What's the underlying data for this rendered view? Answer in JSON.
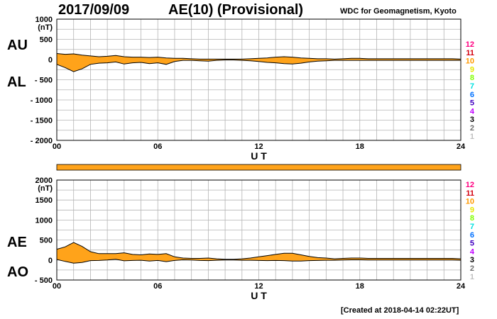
{
  "header": {
    "date": "2017/09/09",
    "title": "AE(10) (Provisional)",
    "source": "WDC for Geomagnetism, Kyoto",
    "created": "[Created at 2018-04-14 02:22UT]"
  },
  "colors": {
    "fill": "#ffa31a",
    "grid": "#b4b4b4",
    "axis": "#000000",
    "bar": "#ffa31a"
  },
  "station_legend": {
    "labels": [
      "12",
      "11",
      "10",
      "9",
      "8",
      "7",
      "6",
      "5",
      "4",
      "3",
      "2",
      "1"
    ],
    "colors": [
      "#ff0080",
      "#d4000f",
      "#ff9900",
      "#e6e600",
      "#80ff00",
      "#00e0e0",
      "#0070ff",
      "#4000c0",
      "#c000ff",
      "#000000",
      "#707070",
      "#c0c0c0"
    ]
  },
  "chart_data": [
    {
      "type": "area",
      "panel": "AU/AL",
      "labels_left": [
        "AU",
        "AL"
      ],
      "unit": "(nT)",
      "xlabel": "U T",
      "x_ticks": [
        "00",
        "06",
        "12",
        "18",
        "24"
      ],
      "y_ticks": [
        "1000",
        "500",
        "0",
        "- 500",
        "- 1000",
        "- 1500",
        "- 2000"
      ],
      "y_tick_values": [
        1000,
        500,
        0,
        -500,
        -1000,
        -1500,
        -2000
      ],
      "xlim": [
        0,
        24
      ],
      "ylim": [
        -2000,
        1000
      ],
      "grid": true,
      "series": [
        {
          "name": "AU",
          "x": [
            0,
            0.5,
            1,
            1.5,
            2,
            2.5,
            3,
            3.5,
            4,
            4.5,
            5,
            5.5,
            6,
            6.5,
            7,
            7.5,
            8,
            8.5,
            9,
            9.5,
            10,
            10.5,
            11,
            11.5,
            12,
            12.5,
            13,
            13.5,
            14,
            14.5,
            15,
            15.5,
            16,
            16.5,
            17,
            17.5,
            18,
            18.5,
            19,
            19.5,
            20,
            20.5,
            21,
            21.5,
            22,
            22.5,
            23,
            23.5,
            24
          ],
          "values": [
            150,
            130,
            140,
            110,
            90,
            70,
            80,
            100,
            70,
            60,
            60,
            50,
            60,
            40,
            30,
            30,
            20,
            10,
            10,
            10,
            10,
            10,
            10,
            20,
            30,
            40,
            60,
            70,
            60,
            40,
            30,
            20,
            20,
            10,
            20,
            30,
            30,
            20,
            20,
            20,
            20,
            20,
            20,
            20,
            20,
            20,
            20,
            20,
            10
          ]
        },
        {
          "name": "AL",
          "x": [
            0,
            0.5,
            1,
            1.5,
            2,
            2.5,
            3,
            3.5,
            4,
            4.5,
            5,
            5.5,
            6,
            6.5,
            7,
            7.5,
            8,
            8.5,
            9,
            9.5,
            10,
            10.5,
            11,
            11.5,
            12,
            12.5,
            13,
            13.5,
            14,
            14.5,
            15,
            15.5,
            16,
            16.5,
            17,
            17.5,
            18,
            18.5,
            19,
            19.5,
            20,
            20.5,
            21,
            21.5,
            22,
            22.5,
            23,
            23.5,
            24
          ],
          "values": [
            -120,
            -200,
            -300,
            -230,
            -120,
            -90,
            -80,
            -60,
            -110,
            -80,
            -70,
            -100,
            -80,
            -120,
            -50,
            -20,
            -20,
            -30,
            -40,
            -20,
            -10,
            -10,
            -20,
            -30,
            -50,
            -70,
            -80,
            -100,
            -110,
            -90,
            -60,
            -40,
            -30,
            -20,
            -20,
            -20,
            -20,
            -20,
            -20,
            -20,
            -20,
            -20,
            -20,
            -20,
            -20,
            -20,
            -20,
            -20,
            -20
          ]
        }
      ]
    },
    {
      "type": "area",
      "panel": "AE/AO",
      "labels_left": [
        "AE",
        "AO"
      ],
      "unit": "(nT)",
      "xlabel": "U T",
      "x_ticks": [
        "00",
        "06",
        "12",
        "18",
        "24"
      ],
      "y_ticks": [
        "2000",
        "1500",
        "1000",
        "500",
        "0",
        "- 500"
      ],
      "y_tick_values": [
        2000,
        1500,
        1000,
        500,
        0,
        -500
      ],
      "xlim": [
        0,
        24
      ],
      "ylim": [
        -500,
        2000
      ],
      "grid": true,
      "series": [
        {
          "name": "AE",
          "x": [
            0,
            0.5,
            1,
            1.5,
            2,
            2.5,
            3,
            3.5,
            4,
            4.5,
            5,
            5.5,
            6,
            6.5,
            7,
            7.5,
            8,
            8.5,
            9,
            9.5,
            10,
            10.5,
            11,
            11.5,
            12,
            12.5,
            13,
            13.5,
            14,
            14.5,
            15,
            15.5,
            16,
            16.5,
            17,
            17.5,
            18,
            18.5,
            19,
            19.5,
            20,
            20.5,
            21,
            21.5,
            22,
            22.5,
            23,
            23.5,
            24
          ],
          "values": [
            270,
            330,
            440,
            340,
            210,
            160,
            160,
            160,
            180,
            140,
            130,
            150,
            140,
            160,
            80,
            50,
            40,
            40,
            50,
            30,
            20,
            20,
            30,
            50,
            80,
            110,
            140,
            170,
            170,
            130,
            90,
            60,
            50,
            30,
            40,
            50,
            50,
            40,
            40,
            40,
            40,
            40,
            40,
            40,
            40,
            40,
            40,
            40,
            30
          ]
        },
        {
          "name": "AO",
          "x": [
            0,
            0.5,
            1,
            1.5,
            2,
            2.5,
            3,
            3.5,
            4,
            4.5,
            5,
            5.5,
            6,
            6.5,
            7,
            7.5,
            8,
            8.5,
            9,
            9.5,
            10,
            10.5,
            11,
            11.5,
            12,
            12.5,
            13,
            13.5,
            14,
            14.5,
            15,
            15.5,
            16,
            16.5,
            17,
            17.5,
            18,
            18.5,
            19,
            19.5,
            20,
            20.5,
            21,
            21.5,
            22,
            22.5,
            23,
            23.5,
            24
          ],
          "values": [
            15,
            -35,
            -80,
            -60,
            -15,
            -10,
            0,
            20,
            -20,
            -10,
            -5,
            -25,
            -10,
            -40,
            -10,
            5,
            0,
            -10,
            -15,
            -5,
            0,
            0,
            -5,
            -5,
            -10,
            -15,
            -10,
            -15,
            -25,
            -25,
            -15,
            -10,
            -5,
            -5,
            0,
            5,
            5,
            0,
            0,
            0,
            0,
            0,
            0,
            0,
            0,
            0,
            0,
            0,
            -5
          ]
        }
      ]
    }
  ]
}
